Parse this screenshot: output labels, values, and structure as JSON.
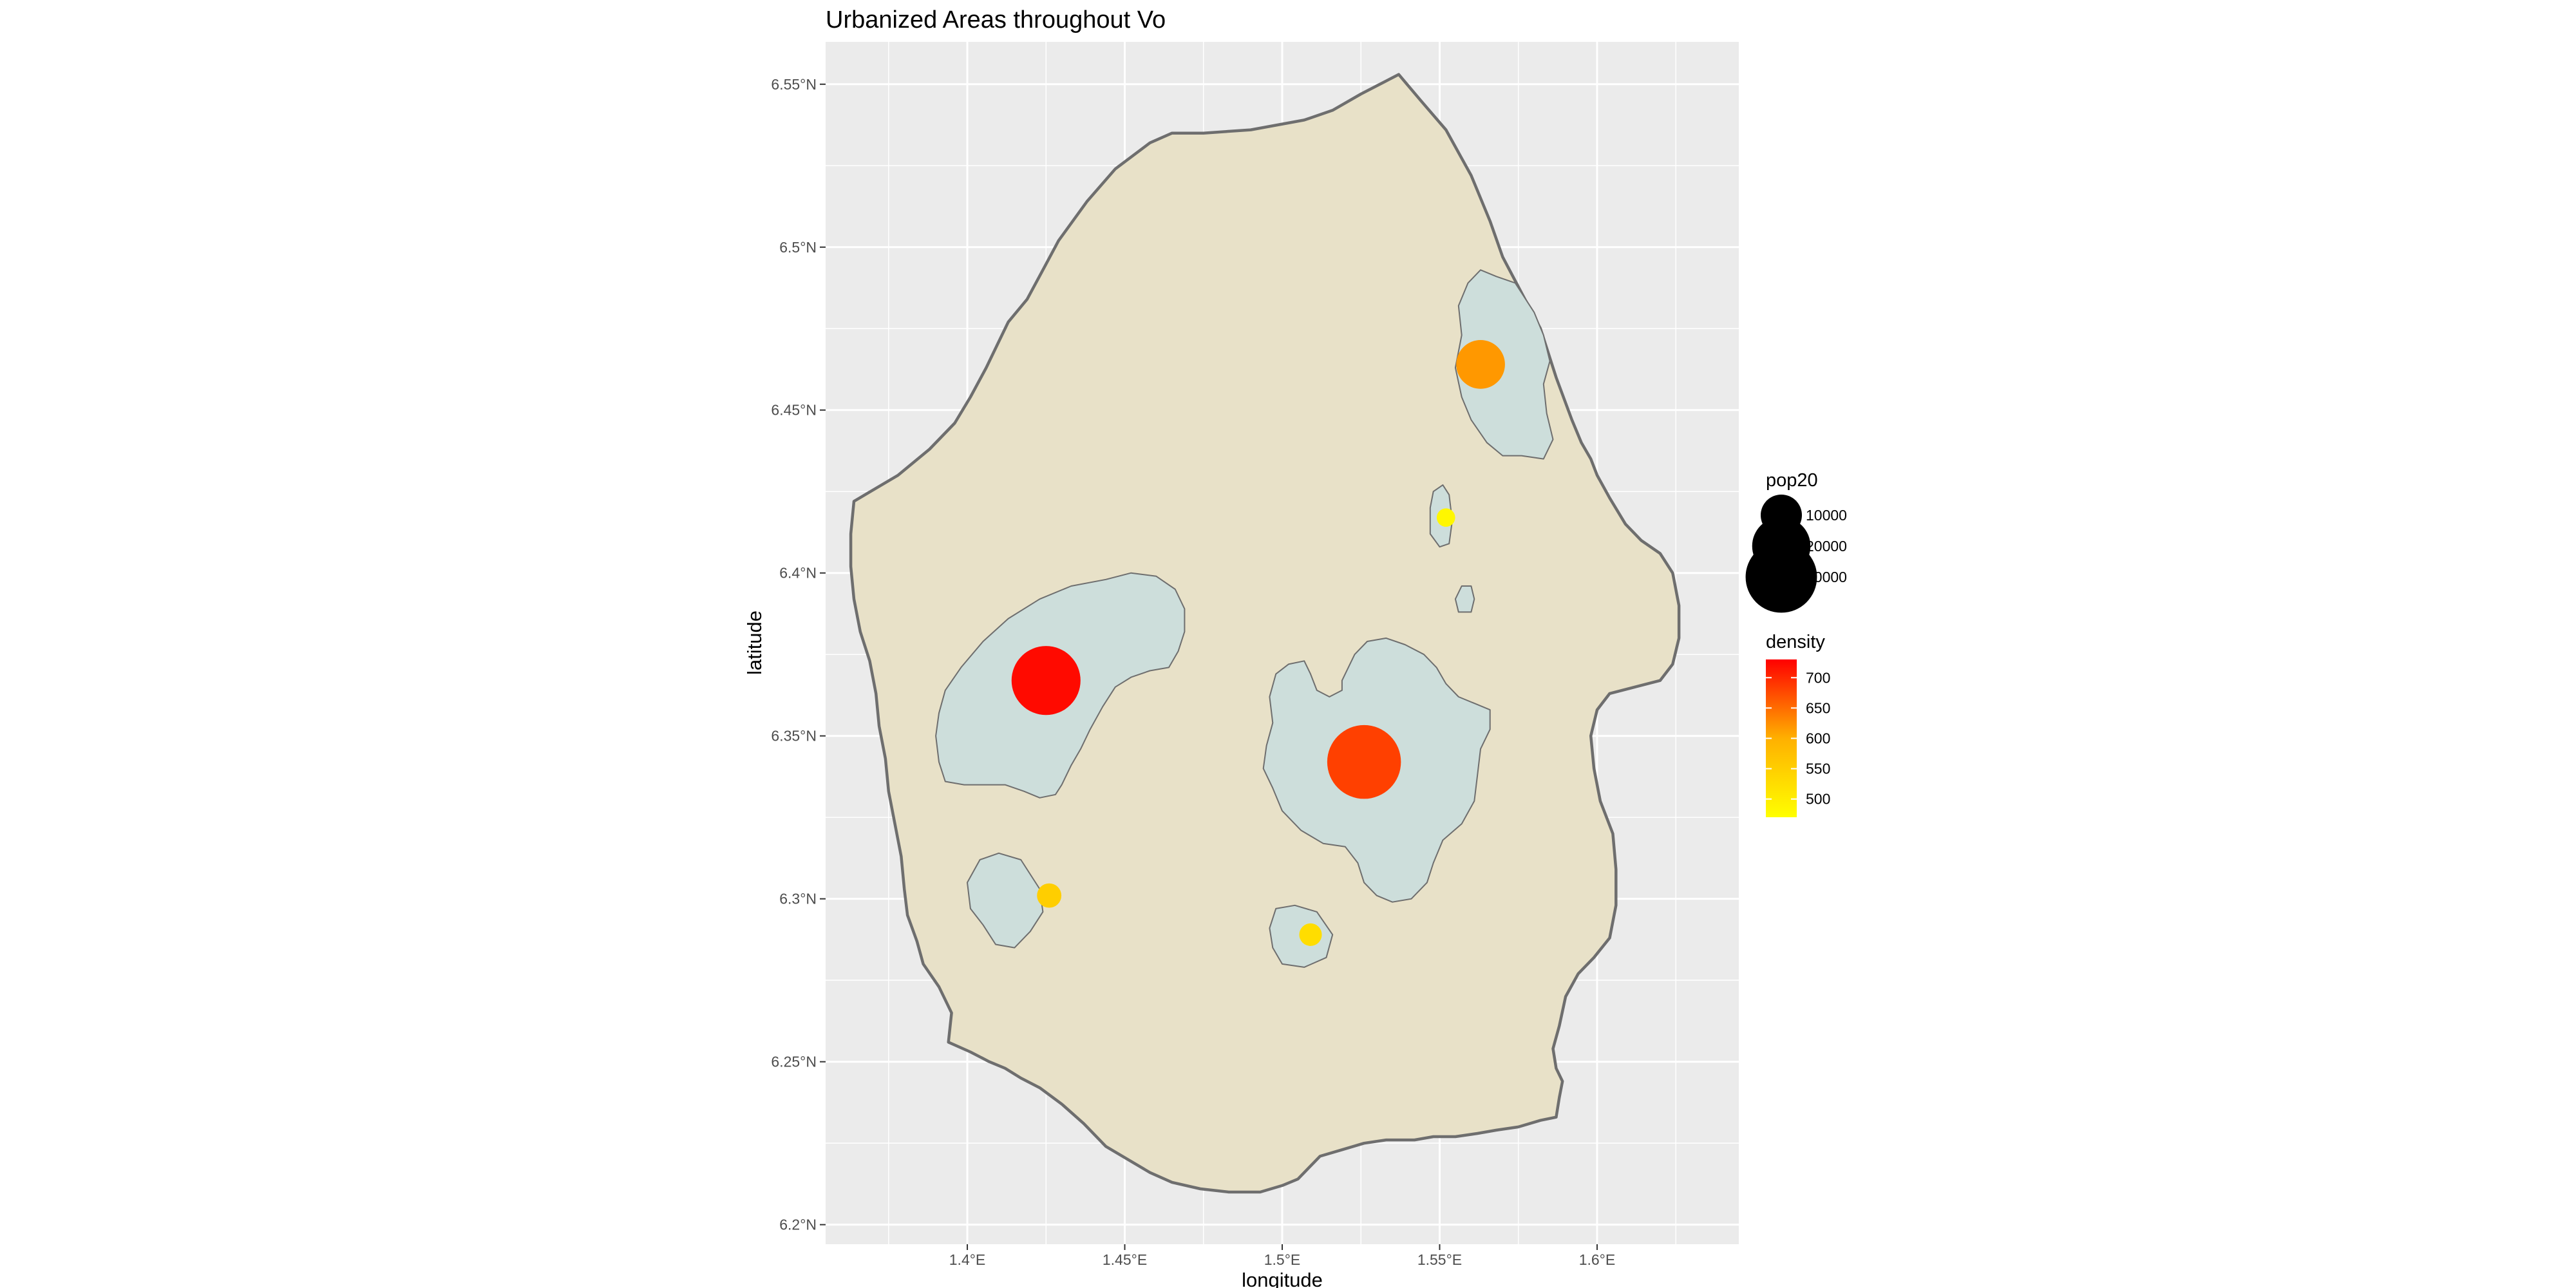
{
  "title": "Urbanized Areas throughout Vo",
  "chart_data": {
    "type": "map",
    "title": "Urbanized Areas throughout Vo",
    "xlabel": "longitude",
    "ylabel": "latitude",
    "xlim": [
      1.355,
      1.645
    ],
    "ylim": [
      6.194,
      6.563
    ],
    "x_ticks": [
      {
        "value": 1.4,
        "label": "1.4°E"
      },
      {
        "value": 1.45,
        "label": "1.45°E"
      },
      {
        "value": 1.5,
        "label": "1.5°E"
      },
      {
        "value": 1.55,
        "label": "1.55°E"
      },
      {
        "value": 1.6,
        "label": "1.6°E"
      }
    ],
    "y_ticks": [
      {
        "value": 6.2,
        "label": "6.2°N"
      },
      {
        "value": 6.25,
        "label": "6.25°N"
      },
      {
        "value": 6.3,
        "label": "6.3°N"
      },
      {
        "value": 6.35,
        "label": "6.35°N"
      },
      {
        "value": 6.4,
        "label": "6.4°N"
      },
      {
        "value": 6.45,
        "label": "6.45°N"
      },
      {
        "value": 6.5,
        "label": "6.5°N"
      },
      {
        "value": 6.55,
        "label": "6.55°N"
      }
    ],
    "grid": true,
    "colors": {
      "panel": "#ebebeb",
      "grid": "#ffffff",
      "boundary_fill": "#e8e1c8",
      "boundary_stroke": "#6e6e6e",
      "urban_fill": "#cddedb",
      "urban_stroke": "#6e6e6e",
      "density_low": "#ffff00",
      "density_high": "#ff0000"
    },
    "boundary": [
      [
        1.364,
        6.422
      ],
      [
        1.378,
        6.43
      ],
      [
        1.388,
        6.438
      ],
      [
        1.396,
        6.446
      ],
      [
        1.401,
        6.454
      ],
      [
        1.406,
        6.463
      ],
      [
        1.41,
        6.471
      ],
      [
        1.413,
        6.477
      ],
      [
        1.419,
        6.484
      ],
      [
        1.424,
        6.493
      ],
      [
        1.429,
        6.502
      ],
      [
        1.438,
        6.514
      ],
      [
        1.447,
        6.524
      ],
      [
        1.458,
        6.532
      ],
      [
        1.465,
        6.535
      ],
      [
        1.475,
        6.535
      ],
      [
        1.49,
        6.536
      ],
      [
        1.507,
        6.539
      ],
      [
        1.516,
        6.542
      ],
      [
        1.525,
        6.547
      ],
      [
        1.533,
        6.551
      ],
      [
        1.537,
        6.553
      ],
      [
        1.544,
        6.545
      ],
      [
        1.552,
        6.536
      ],
      [
        1.56,
        6.522
      ],
      [
        1.566,
        6.508
      ],
      [
        1.57,
        6.497
      ],
      [
        1.576,
        6.486
      ],
      [
        1.582,
        6.475
      ],
      [
        1.587,
        6.46
      ],
      [
        1.592,
        6.447
      ],
      [
        1.595,
        6.44
      ],
      [
        1.598,
        6.435
      ],
      [
        1.6,
        6.43
      ],
      [
        1.604,
        6.423
      ],
      [
        1.609,
        6.415
      ],
      [
        1.614,
        6.41
      ],
      [
        1.62,
        6.406
      ],
      [
        1.624,
        6.4
      ],
      [
        1.626,
        6.39
      ],
      [
        1.626,
        6.38
      ],
      [
        1.624,
        6.372
      ],
      [
        1.62,
        6.367
      ],
      [
        1.612,
        6.365
      ],
      [
        1.604,
        6.363
      ],
      [
        1.6,
        6.358
      ],
      [
        1.598,
        6.35
      ],
      [
        1.599,
        6.34
      ],
      [
        1.601,
        6.33
      ],
      [
        1.605,
        6.32
      ],
      [
        1.606,
        6.309
      ],
      [
        1.606,
        6.298
      ],
      [
        1.604,
        6.288
      ],
      [
        1.599,
        6.282
      ],
      [
        1.594,
        6.277
      ],
      [
        1.59,
        6.27
      ],
      [
        1.588,
        6.261
      ],
      [
        1.586,
        6.254
      ],
      [
        1.587,
        6.248
      ],
      [
        1.589,
        6.244
      ],
      [
        1.588,
        6.239
      ],
      [
        1.587,
        6.233
      ],
      [
        1.582,
        6.232
      ],
      [
        1.575,
        6.23
      ],
      [
        1.568,
        6.229
      ],
      [
        1.562,
        6.228
      ],
      [
        1.555,
        6.227
      ],
      [
        1.548,
        6.227
      ],
      [
        1.542,
        6.226
      ],
      [
        1.533,
        6.226
      ],
      [
        1.526,
        6.225
      ],
      [
        1.519,
        6.223
      ],
      [
        1.512,
        6.221
      ],
      [
        1.509,
        6.218
      ],
      [
        1.505,
        6.214
      ],
      [
        1.5,
        6.212
      ],
      [
        1.493,
        6.21
      ],
      [
        1.483,
        6.21
      ],
      [
        1.474,
        6.211
      ],
      [
        1.465,
        6.213
      ],
      [
        1.458,
        6.216
      ],
      [
        1.451,
        6.22
      ],
      [
        1.444,
        6.224
      ],
      [
        1.437,
        6.231
      ],
      [
        1.43,
        6.237
      ],
      [
        1.423,
        6.242
      ],
      [
        1.417,
        6.245
      ],
      [
        1.412,
        6.248
      ],
      [
        1.407,
        6.25
      ],
      [
        1.401,
        6.253
      ],
      [
        1.394,
        6.256
      ],
      [
        1.395,
        6.265
      ],
      [
        1.391,
        6.273
      ],
      [
        1.386,
        6.28
      ],
      [
        1.384,
        6.287
      ],
      [
        1.381,
        6.295
      ],
      [
        1.38,
        6.303
      ],
      [
        1.379,
        6.313
      ],
      [
        1.377,
        6.323
      ],
      [
        1.375,
        6.333
      ],
      [
        1.374,
        6.343
      ],
      [
        1.372,
        6.353
      ],
      [
        1.371,
        6.363
      ],
      [
        1.369,
        6.373
      ],
      [
        1.366,
        6.382
      ],
      [
        1.364,
        6.392
      ],
      [
        1.363,
        6.402
      ],
      [
        1.363,
        6.412
      ],
      [
        1.364,
        6.422
      ]
    ],
    "urban_areas": [
      [
        [
          1.391,
          6.357
        ],
        [
          1.393,
          6.364
        ],
        [
          1.398,
          6.371
        ],
        [
          1.405,
          6.379
        ],
        [
          1.413,
          6.386
        ],
        [
          1.423,
          6.392
        ],
        [
          1.433,
          6.396
        ],
        [
          1.444,
          6.398
        ],
        [
          1.452,
          6.4
        ],
        [
          1.46,
          6.399
        ],
        [
          1.466,
          6.395
        ],
        [
          1.469,
          6.389
        ],
        [
          1.469,
          6.382
        ],
        [
          1.467,
          6.376
        ],
        [
          1.464,
          6.371
        ],
        [
          1.458,
          6.37
        ],
        [
          1.452,
          6.368
        ],
        [
          1.447,
          6.365
        ],
        [
          1.443,
          6.359
        ],
        [
          1.439,
          6.352
        ],
        [
          1.436,
          6.346
        ],
        [
          1.433,
          6.341
        ],
        [
          1.43,
          6.335
        ],
        [
          1.428,
          6.332
        ],
        [
          1.423,
          6.331
        ],
        [
          1.418,
          6.333
        ],
        [
          1.412,
          6.335
        ],
        [
          1.405,
          6.335
        ],
        [
          1.399,
          6.335
        ],
        [
          1.393,
          6.336
        ],
        [
          1.391,
          6.342
        ],
        [
          1.39,
          6.35
        ],
        [
          1.391,
          6.357
        ]
      ],
      [
        [
          1.519,
          6.367
        ],
        [
          1.523,
          6.375
        ],
        [
          1.527,
          6.379
        ],
        [
          1.533,
          6.38
        ],
        [
          1.539,
          6.378
        ],
        [
          1.545,
          6.375
        ],
        [
          1.549,
          6.371
        ],
        [
          1.552,
          6.366
        ],
        [
          1.556,
          6.362
        ],
        [
          1.561,
          6.36
        ],
        [
          1.566,
          6.358
        ],
        [
          1.566,
          6.352
        ],
        [
          1.563,
          6.346
        ],
        [
          1.562,
          6.338
        ],
        [
          1.561,
          6.33
        ],
        [
          1.557,
          6.323
        ],
        [
          1.551,
          6.318
        ],
        [
          1.548,
          6.311
        ],
        [
          1.546,
          6.305
        ],
        [
          1.541,
          6.3
        ],
        [
          1.535,
          6.299
        ],
        [
          1.53,
          6.301
        ],
        [
          1.526,
          6.305
        ],
        [
          1.524,
          6.311
        ],
        [
          1.52,
          6.316
        ],
        [
          1.513,
          6.317
        ],
        [
          1.506,
          6.321
        ],
        [
          1.5,
          6.327
        ],
        [
          1.497,
          6.334
        ],
        [
          1.494,
          6.34
        ],
        [
          1.495,
          6.347
        ],
        [
          1.497,
          6.354
        ],
        [
          1.496,
          6.362
        ],
        [
          1.498,
          6.369
        ],
        [
          1.502,
          6.372
        ],
        [
          1.507,
          6.373
        ],
        [
          1.509,
          6.369
        ],
        [
          1.511,
          6.364
        ],
        [
          1.515,
          6.362
        ],
        [
          1.519,
          6.364
        ],
        [
          1.519,
          6.367
        ]
      ],
      [
        [
          1.557,
          6.473
        ],
        [
          1.556,
          6.482
        ],
        [
          1.559,
          6.489
        ],
        [
          1.563,
          6.493
        ],
        [
          1.568,
          6.491
        ],
        [
          1.574,
          6.489
        ],
        [
          1.58,
          6.48
        ],
        [
          1.583,
          6.473
        ],
        [
          1.585,
          6.465
        ],
        [
          1.583,
          6.458
        ],
        [
          1.584,
          6.449
        ],
        [
          1.586,
          6.441
        ],
        [
          1.583,
          6.435
        ],
        [
          1.576,
          6.436
        ],
        [
          1.57,
          6.436
        ],
        [
          1.565,
          6.44
        ],
        [
          1.56,
          6.447
        ],
        [
          1.557,
          6.454
        ],
        [
          1.555,
          6.463
        ],
        [
          1.557,
          6.473
        ]
      ],
      [
        [
          1.4,
          6.305
        ],
        [
          1.404,
          6.312
        ],
        [
          1.41,
          6.314
        ],
        [
          1.417,
          6.312
        ],
        [
          1.423,
          6.303
        ],
        [
          1.424,
          6.296
        ],
        [
          1.42,
          6.29
        ],
        [
          1.415,
          6.285
        ],
        [
          1.409,
          6.286
        ],
        [
          1.405,
          6.292
        ],
        [
          1.401,
          6.297
        ],
        [
          1.4,
          6.305
        ]
      ],
      [
        [
          1.496,
          6.291
        ],
        [
          1.498,
          6.297
        ],
        [
          1.504,
          6.298
        ],
        [
          1.511,
          6.296
        ],
        [
          1.516,
          6.289
        ],
        [
          1.514,
          6.282
        ],
        [
          1.507,
          6.279
        ],
        [
          1.5,
          6.28
        ],
        [
          1.497,
          6.285
        ],
        [
          1.496,
          6.291
        ]
      ],
      [
        [
          1.548,
          6.425
        ],
        [
          1.551,
          6.427
        ],
        [
          1.553,
          6.424
        ],
        [
          1.554,
          6.416
        ],
        [
          1.553,
          6.409
        ],
        [
          1.55,
          6.408
        ],
        [
          1.547,
          6.412
        ],
        [
          1.547,
          6.42
        ],
        [
          1.548,
          6.425
        ]
      ],
      [
        [
          1.555,
          6.392
        ],
        [
          1.557,
          6.396
        ],
        [
          1.56,
          6.396
        ],
        [
          1.561,
          6.392
        ],
        [
          1.56,
          6.388
        ],
        [
          1.556,
          6.388
        ],
        [
          1.555,
          6.392
        ]
      ]
    ],
    "points": [
      {
        "lon": 1.425,
        "lat": 6.367,
        "pop20": 28000,
        "density": 720
      },
      {
        "lon": 1.526,
        "lat": 6.342,
        "pop20": 32000,
        "density": 665
      },
      {
        "lon": 1.563,
        "lat": 6.464,
        "pop20": 14000,
        "density": 575
      },
      {
        "lon": 1.426,
        "lat": 6.301,
        "pop20": 3500,
        "density": 520
      },
      {
        "lon": 1.509,
        "lat": 6.289,
        "pop20": 3000,
        "density": 505
      },
      {
        "lon": 1.552,
        "lat": 6.417,
        "pop20": 2000,
        "density": 478
      }
    ],
    "legend_pop": {
      "title": "pop20",
      "items": [
        {
          "value": 10000,
          "label": "10000"
        },
        {
          "value": 20000,
          "label": "20000"
        },
        {
          "value": 30000,
          "label": "30000"
        }
      ]
    },
    "legend_density": {
      "title": "density",
      "min": 470,
      "max": 730,
      "ticks": [
        {
          "value": 700,
          "label": "700"
        },
        {
          "value": 650,
          "label": "650"
        },
        {
          "value": 600,
          "label": "600"
        },
        {
          "value": 550,
          "label": "550"
        },
        {
          "value": 500,
          "label": "500"
        }
      ]
    }
  }
}
